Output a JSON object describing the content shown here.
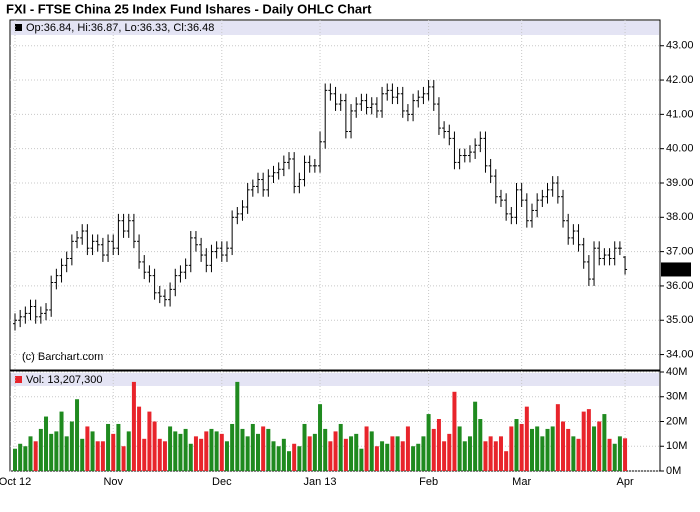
{
  "chart_data": [
    {
      "type": "ohlc",
      "title": "FXI - FTSE China 25 Index Fund Ishares - Daily OHLC Chart",
      "legend": "Op:36.84, Hi:36.87, Lo:36.33, Cl:36.48",
      "annotation": "(c) Barchart.com",
      "color": "#000000",
      "grid": true,
      "ylim": [
        33.55,
        43.75
      ],
      "yticks": [
        {
          "value": 34,
          "label": "34.00"
        },
        {
          "value": 35,
          "label": "35.00"
        },
        {
          "value": 36,
          "label": "36.00"
        },
        {
          "value": 37,
          "label": "37.00"
        },
        {
          "value": 38,
          "label": "38.00"
        },
        {
          "value": 39,
          "label": "39.00"
        },
        {
          "value": 40,
          "label": "40.00"
        },
        {
          "value": 41,
          "label": "41.00"
        },
        {
          "value": 42,
          "label": "42.00"
        },
        {
          "value": 43,
          "label": "43.00"
        }
      ],
      "open": [
        34.9,
        35.0,
        35.1,
        35.2,
        35.4,
        35.1,
        35.2,
        35.3,
        36.1,
        36.3,
        36.6,
        36.8,
        37.3,
        37.4,
        37.6,
        37.1,
        37.3,
        37.2,
        36.9,
        37.3,
        37.1,
        37.9,
        37.6,
        37.9,
        37.3,
        36.7,
        36.4,
        36.3,
        35.8,
        35.7,
        35.6,
        35.9,
        36.3,
        36.4,
        36.6,
        37.4,
        37.2,
        36.9,
        36.6,
        37.0,
        37.1,
        36.9,
        37.1,
        38.0,
        38.1,
        38.3,
        38.8,
        38.9,
        39.1,
        38.8,
        39.2,
        39.3,
        39.4,
        39.6,
        39.7,
        38.9,
        39.1,
        39.6,
        39.5,
        39.5,
        40.2,
        41.7,
        41.6,
        41.3,
        41.4,
        40.5,
        41.1,
        41.3,
        41.4,
        41.2,
        41.3,
        41.1,
        41.6,
        41.7,
        41.5,
        41.6,
        41.1,
        41.0,
        41.4,
        41.5,
        41.6,
        41.8,
        41.3,
        40.6,
        40.5,
        40.3,
        39.6,
        39.8,
        39.8,
        39.9,
        40.1,
        40.3,
        39.5,
        39.2,
        38.6,
        38.5,
        38.1,
        38.0,
        38.8,
        38.5,
        37.9,
        38.2,
        38.5,
        38.6,
        38.8,
        39.0,
        38.6,
        37.9,
        37.4,
        37.6,
        37.2,
        36.7,
        36.2,
        37.1,
        36.8,
        36.9,
        36.8,
        37.1,
        36.84
      ],
      "high": [
        35.2,
        35.3,
        35.4,
        35.6,
        35.6,
        35.4,
        35.5,
        36.3,
        36.5,
        36.8,
        37.0,
        37.5,
        37.6,
        37.8,
        37.8,
        37.5,
        37.5,
        37.4,
        37.5,
        37.5,
        38.1,
        38.1,
        38.1,
        38.1,
        37.5,
        36.9,
        36.6,
        36.5,
        36.0,
        35.9,
        36.1,
        36.5,
        36.6,
        36.8,
        37.6,
        37.6,
        37.4,
        37.1,
        37.2,
        37.3,
        37.3,
        37.3,
        38.2,
        38.3,
        38.5,
        39.0,
        39.1,
        39.3,
        39.3,
        39.4,
        39.5,
        39.6,
        39.8,
        39.9,
        39.9,
        39.3,
        39.8,
        39.8,
        39.7,
        40.5,
        41.9,
        41.9,
        41.8,
        41.6,
        41.6,
        41.3,
        41.5,
        41.6,
        41.6,
        41.5,
        41.5,
        41.8,
        41.9,
        41.9,
        41.8,
        41.8,
        41.3,
        41.6,
        41.7,
        41.8,
        42.0,
        42.0,
        41.5,
        40.8,
        40.7,
        40.5,
        40.0,
        40.0,
        40.1,
        40.3,
        40.5,
        40.5,
        39.7,
        39.4,
        38.8,
        38.7,
        38.3,
        39.0,
        39.0,
        38.7,
        38.4,
        38.7,
        38.8,
        39.0,
        39.2,
        39.2,
        38.8,
        38.1,
        37.8,
        37.8,
        37.4,
        36.9,
        37.3,
        37.3,
        37.1,
        37.1,
        37.3,
        37.3,
        36.87
      ],
      "low": [
        34.7,
        34.8,
        34.9,
        35.0,
        34.9,
        34.9,
        35.0,
        35.1,
        35.9,
        36.1,
        36.4,
        36.6,
        37.1,
        37.2,
        36.9,
        36.9,
        37.0,
        36.7,
        36.7,
        36.9,
        36.9,
        37.4,
        37.4,
        37.1,
        36.5,
        36.2,
        36.1,
        35.6,
        35.5,
        35.4,
        35.4,
        35.7,
        36.1,
        36.2,
        36.4,
        37.0,
        36.7,
        36.4,
        36.4,
        36.8,
        36.7,
        36.7,
        36.9,
        37.8,
        37.9,
        38.1,
        38.6,
        38.7,
        38.6,
        38.6,
        39.0,
        39.1,
        39.2,
        39.4,
        38.7,
        38.7,
        38.9,
        39.3,
        39.3,
        39.3,
        40.0,
        41.4,
        41.1,
        41.1,
        40.3,
        40.3,
        40.9,
        41.1,
        41.0,
        41.0,
        40.9,
        40.9,
        41.4,
        41.3,
        41.3,
        40.9,
        40.8,
        40.8,
        41.2,
        41.3,
        41.4,
        41.1,
        40.4,
        40.3,
        40.1,
        39.4,
        39.4,
        39.6,
        39.6,
        39.7,
        39.9,
        39.3,
        39.0,
        38.4,
        38.3,
        37.9,
        37.8,
        37.8,
        38.3,
        37.7,
        37.7,
        38.0,
        38.3,
        38.4,
        38.6,
        38.4,
        37.7,
        37.2,
        37.2,
        37.0,
        36.5,
        36.0,
        36.0,
        36.6,
        36.6,
        36.6,
        36.6,
        36.9,
        36.33
      ],
      "close": [
        35.0,
        35.1,
        35.2,
        35.4,
        35.1,
        35.2,
        35.3,
        36.1,
        36.3,
        36.6,
        36.8,
        37.3,
        37.4,
        37.6,
        37.1,
        37.3,
        37.2,
        36.9,
        37.3,
        37.1,
        37.9,
        37.6,
        37.9,
        37.3,
        36.7,
        36.4,
        36.3,
        35.8,
        35.7,
        35.6,
        35.9,
        36.3,
        36.4,
        36.6,
        37.4,
        37.2,
        36.9,
        36.6,
        37.0,
        37.1,
        36.9,
        37.1,
        38.0,
        38.1,
        38.3,
        38.8,
        38.9,
        39.1,
        38.8,
        39.2,
        39.3,
        39.4,
        39.6,
        39.7,
        38.9,
        39.1,
        39.6,
        39.5,
        39.5,
        40.2,
        41.7,
        41.6,
        41.3,
        41.4,
        40.5,
        41.1,
        41.3,
        41.4,
        41.2,
        41.3,
        41.1,
        41.6,
        41.7,
        41.5,
        41.6,
        41.1,
        41.0,
        41.4,
        41.5,
        41.6,
        41.8,
        41.3,
        40.6,
        40.5,
        40.3,
        39.6,
        39.8,
        39.8,
        39.9,
        40.1,
        40.3,
        39.5,
        39.2,
        38.6,
        38.5,
        38.1,
        38.0,
        38.8,
        38.5,
        37.9,
        38.2,
        38.5,
        38.6,
        38.8,
        39.0,
        38.6,
        37.9,
        37.4,
        37.6,
        37.2,
        36.7,
        36.2,
        37.1,
        36.8,
        36.9,
        36.8,
        37.1,
        37.1,
        36.48
      ]
    },
    {
      "type": "bar",
      "legend": "Vol: 13,207,300",
      "up_color": "#1f8a1f",
      "down_color": "#e8242b",
      "grid": true,
      "ylim": [
        0,
        40.4
      ],
      "yticks": [
        {
          "value": 0,
          "label": "0M"
        },
        {
          "value": 10,
          "label": "10M"
        },
        {
          "value": 20,
          "label": "20M"
        },
        {
          "value": 30,
          "label": "30M"
        },
        {
          "value": 40,
          "label": "40M"
        }
      ],
      "categories": [
        "Oct 12",
        null,
        null,
        null,
        null,
        null,
        null,
        null,
        null,
        null,
        null,
        null,
        null,
        null,
        null,
        null,
        null,
        null,
        null,
        "Nov",
        null,
        null,
        null,
        null,
        null,
        null,
        null,
        null,
        null,
        null,
        null,
        null,
        null,
        null,
        null,
        null,
        null,
        null,
        null,
        null,
        "Dec",
        null,
        null,
        null,
        null,
        null,
        null,
        null,
        null,
        null,
        null,
        null,
        null,
        null,
        null,
        null,
        null,
        null,
        null,
        "Jan 13",
        null,
        null,
        null,
        null,
        null,
        null,
        null,
        null,
        null,
        null,
        null,
        null,
        null,
        null,
        null,
        null,
        null,
        null,
        null,
        null,
        "Feb",
        null,
        null,
        null,
        null,
        null,
        null,
        null,
        null,
        null,
        null,
        null,
        null,
        null,
        null,
        null,
        null,
        null,
        "Mar",
        null,
        null,
        null,
        null,
        null,
        null,
        null,
        null,
        null,
        null,
        null,
        null,
        null,
        null,
        null,
        null,
        null,
        null,
        null,
        "Apr"
      ],
      "values": [
        9,
        11,
        10,
        14,
        12,
        17,
        22,
        15,
        16,
        24,
        14,
        20,
        29,
        13,
        18,
        16,
        12,
        12,
        19,
        15,
        19,
        10,
        16,
        36,
        26,
        13,
        24,
        20,
        13,
        12,
        18,
        16,
        15,
        17,
        11,
        14,
        13,
        16,
        17,
        16,
        15,
        12,
        19,
        36,
        17,
        14,
        19,
        15,
        18,
        17,
        12,
        10,
        13,
        8,
        11,
        10,
        19,
        14,
        15,
        27,
        17,
        12,
        16,
        19,
        13,
        14,
        15,
        9,
        18,
        16,
        10,
        12,
        11,
        14,
        14,
        12,
        18,
        10,
        11,
        14,
        23,
        17,
        21,
        12,
        15,
        32,
        18,
        12,
        14,
        28,
        21,
        12,
        14,
        12,
        14,
        8,
        18,
        21,
        19,
        26,
        17,
        18,
        14,
        17,
        18,
        27,
        20,
        17,
        14,
        13,
        24,
        25,
        18,
        20,
        23,
        13,
        11,
        14,
        13.2073
      ]
    }
  ]
}
